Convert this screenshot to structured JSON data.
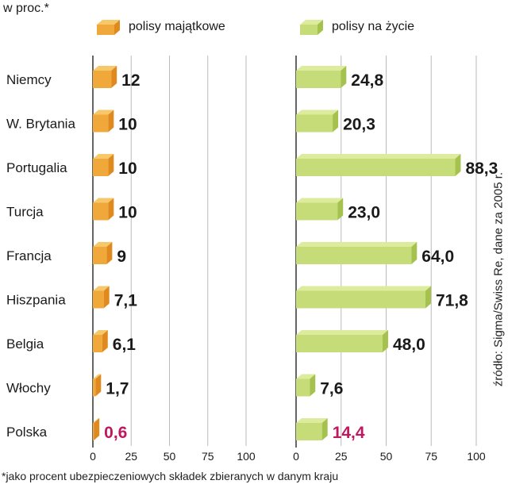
{
  "unit_label": "w proc.*",
  "source": "źródło: Sigma/Swiss Re, dane za 2005 r.",
  "footnote": "*jako procent ubezpieczeniowych składek zbieranych w danym kraju",
  "legend": [
    {
      "label": "polisy majątkowe",
      "color": "#f0a83a"
    },
    {
      "label": "polisy na życie",
      "color": "#c6dc78"
    }
  ],
  "colors": {
    "orange_front": "#f0a83a",
    "orange_top": "#f7c86a",
    "orange_end": "#e08a1e",
    "green_front": "#c6dc78",
    "green_top": "#dcec9c",
    "green_end": "#a6c24e",
    "axis": "#333333",
    "grid": "#bbbbbb",
    "highlight": "#c0185e",
    "text": "#1a1a1a"
  },
  "chart_data": [
    {
      "type": "bar",
      "orientation": "horizontal",
      "series": [
        {
          "name": "polisy majątkowe",
          "values": [
            12,
            10,
            10,
            10,
            9,
            7.1,
            6.1,
            1.7,
            0.6
          ]
        }
      ],
      "value_labels": [
        "12",
        "10",
        "10",
        "10",
        "9",
        "7,1",
        "6,1",
        "1,7",
        "0,6"
      ],
      "categories": [
        "Niemcy",
        "W. Brytania",
        "Portugalia",
        "Turcja",
        "Francja",
        "Hiszpania",
        "Belgia",
        "Włochy",
        "Polska"
      ],
      "xlim": [
        0,
        100
      ],
      "ticks": [
        "0",
        "25",
        "50",
        "75",
        "100"
      ],
      "highlight": "Polska",
      "grid": true
    },
    {
      "type": "bar",
      "orientation": "horizontal",
      "series": [
        {
          "name": "polisy na życie",
          "values": [
            24.8,
            20.3,
            88.3,
            23.0,
            64.0,
            71.8,
            48.0,
            7.6,
            14.4
          ]
        }
      ],
      "value_labels": [
        "24,8",
        "20,3",
        "88,3",
        "23,0",
        "64,0",
        "71,8",
        "48,0",
        "7,6",
        "14,4"
      ],
      "categories": [
        "Niemcy",
        "W. Brytania",
        "Portugalia",
        "Turcja",
        "Francja",
        "Hiszpania",
        "Belgia",
        "Włochy",
        "Polska"
      ],
      "xlim": [
        0,
        100
      ],
      "ticks": [
        "0",
        "25",
        "50",
        "75",
        "100"
      ],
      "highlight": "Polska",
      "grid": true
    }
  ]
}
